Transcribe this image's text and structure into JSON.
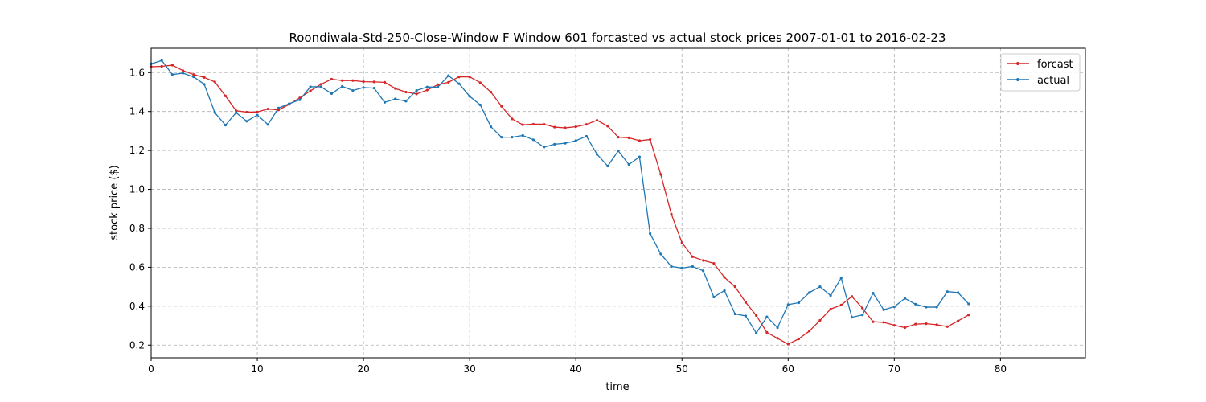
{
  "chart_data": {
    "type": "line",
    "title": "Roondiwala-Std-250-Close-Window F Window 601 forcasted vs actual stock prices 2007-01-01 to 2016-02-23",
    "xlabel": "time",
    "ylabel": "stock price ($)",
    "xlim": [
      0,
      88
    ],
    "ylim": [
      0.135,
      1.725
    ],
    "xticks": [
      0,
      10,
      20,
      30,
      40,
      50,
      60,
      70,
      80
    ],
    "yticks": [
      0.2,
      0.4,
      0.6,
      0.8,
      1.0,
      1.2,
      1.4,
      1.6
    ],
    "grid": true,
    "legend_position": "top-right",
    "series": [
      {
        "name": "forcast",
        "color": "#d62728",
        "values": [
          1.63,
          1.632,
          1.638,
          1.61,
          1.59,
          1.575,
          1.552,
          1.48,
          1.404,
          1.397,
          1.397,
          1.413,
          1.408,
          1.437,
          1.47,
          1.506,
          1.54,
          1.566,
          1.559,
          1.559,
          1.553,
          1.552,
          1.55,
          1.518,
          1.5,
          1.49,
          1.51,
          1.538,
          1.55,
          1.578,
          1.578,
          1.548,
          1.5,
          1.427,
          1.362,
          1.332,
          1.335,
          1.335,
          1.32,
          1.316,
          1.322,
          1.334,
          1.355,
          1.325,
          1.268,
          1.265,
          1.25,
          1.256,
          1.077,
          0.873,
          0.726,
          0.654,
          0.635,
          0.62,
          0.548,
          0.5,
          0.42,
          0.352,
          0.265,
          0.235,
          0.205,
          0.232,
          0.272,
          0.327,
          0.385,
          0.406,
          0.45,
          0.39,
          0.32,
          0.317,
          0.302,
          0.29,
          0.308,
          0.31,
          0.305,
          0.295,
          0.324,
          0.355
        ]
      },
      {
        "name": "actual",
        "color": "#1f77b4",
        "values": [
          1.645,
          1.662,
          1.59,
          1.597,
          1.578,
          1.54,
          1.394,
          1.33,
          1.394,
          1.35,
          1.382,
          1.333,
          1.418,
          1.44,
          1.46,
          1.527,
          1.527,
          1.492,
          1.529,
          1.508,
          1.523,
          1.52,
          1.447,
          1.465,
          1.453,
          1.508,
          1.526,
          1.525,
          1.584,
          1.543,
          1.478,
          1.434,
          1.322,
          1.268,
          1.268,
          1.277,
          1.255,
          1.217,
          1.232,
          1.237,
          1.25,
          1.273,
          1.18,
          1.12,
          1.198,
          1.128,
          1.167,
          0.773,
          0.668,
          0.604,
          0.596,
          0.604,
          0.582,
          0.447,
          0.48,
          0.36,
          0.35,
          0.262,
          0.345,
          0.29,
          0.408,
          0.418,
          0.47,
          0.5,
          0.455,
          0.545,
          0.343,
          0.355,
          0.467,
          0.382,
          0.397,
          0.44,
          0.41,
          0.395,
          0.395,
          0.475,
          0.47,
          0.412
        ]
      }
    ]
  }
}
